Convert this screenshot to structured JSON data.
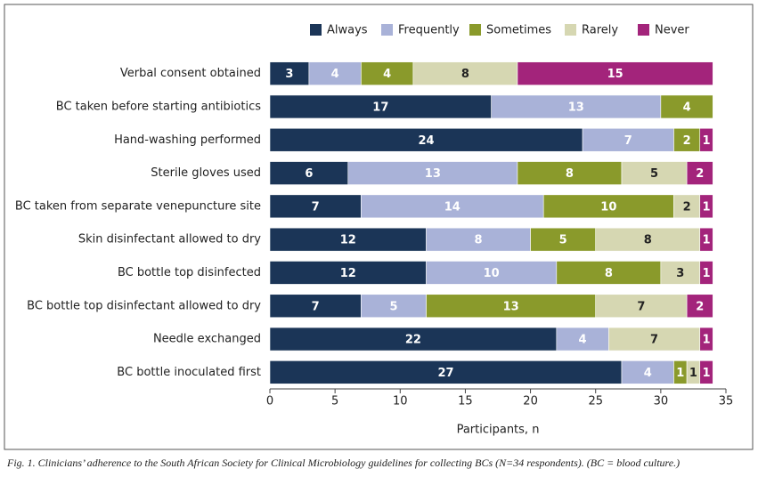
{
  "chart_data": {
    "type": "stacked-bar-horizontal",
    "categories": [
      "Verbal consent obtained",
      "BC taken before starting antibiotics",
      "Hand-washing performed",
      "Sterile gloves used",
      "BC taken from separate venepuncture site",
      "Skin disinfectant allowed to dry",
      "BC bottle top disinfected",
      "BC bottle top disinfectant allowed to dry",
      "Needle exchanged",
      "BC bottle inoculated first"
    ],
    "series": [
      {
        "name": "Always",
        "color": "#1b3557",
        "label_color": "#ffffff",
        "values": [
          3,
          17,
          24,
          6,
          7,
          12,
          12,
          7,
          22,
          27
        ]
      },
      {
        "name": "Frequently",
        "color": "#a9b2d8",
        "label_color": "#ffffff",
        "values": [
          4,
          13,
          7,
          13,
          14,
          8,
          10,
          5,
          4,
          4
        ]
      },
      {
        "name": "Sometimes",
        "color": "#8a9a2b",
        "label_color": "#ffffff",
        "values": [
          4,
          4,
          2,
          8,
          10,
          5,
          8,
          13,
          null,
          1
        ]
      },
      {
        "name": "Rarely",
        "color": "#d6d7b2",
        "label_color": "#222222",
        "values": [
          8,
          null,
          null,
          5,
          2,
          8,
          3,
          7,
          7,
          1
        ]
      },
      {
        "name": "Never",
        "color": "#a3247b",
        "label_color": "#ffffff",
        "values": [
          15,
          null,
          1,
          2,
          1,
          1,
          1,
          2,
          1,
          1
        ]
      }
    ],
    "xlim": [
      0,
      35
    ],
    "xticks": [
      0,
      5,
      10,
      15,
      20,
      25,
      30,
      35
    ],
    "xlabel": "Participants, n",
    "caption": "Fig. 1. Clinicians’ adherence to the South African Society for Clinical Microbiology guidelines for collecting BCs (N=34 respondents). (BC = blood culture.)"
  }
}
